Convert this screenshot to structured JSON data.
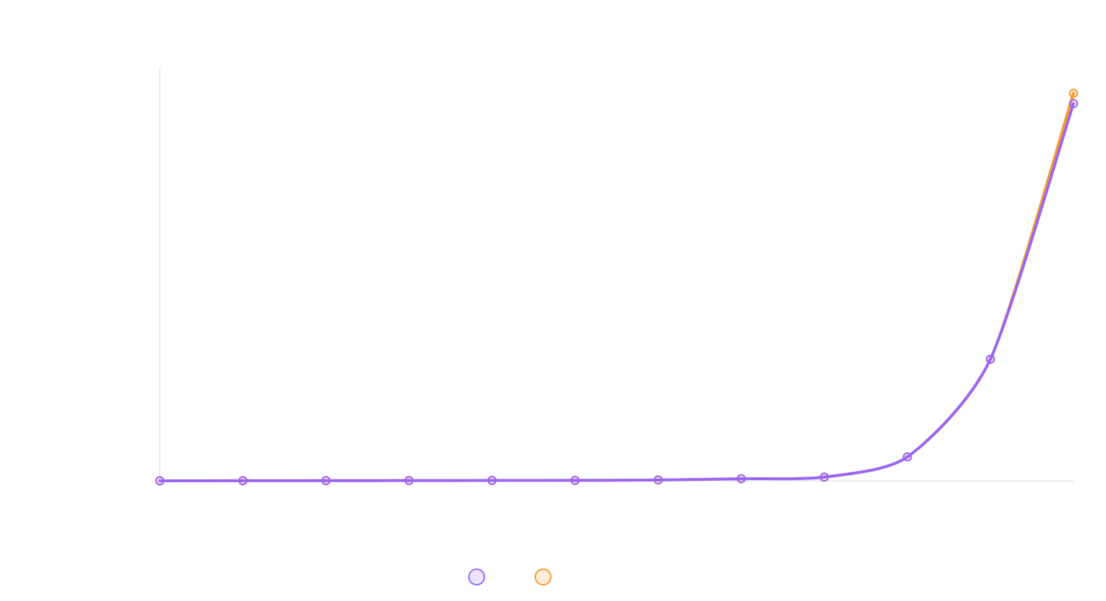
{
  "chart_data": {
    "type": "line",
    "title": "",
    "xlabel": "",
    "ylabel": "",
    "categories": [
      "",
      "",
      "",
      "",
      "",
      "",
      "",
      "",
      "",
      "",
      "",
      ""
    ],
    "ylim": [
      0,
      100
    ],
    "grid": false,
    "legend": "bottom-center",
    "series": [
      {
        "color": "#9a66f5",
        "values": [
          0,
          0.02,
          0.04,
          0.06,
          0.08,
          0.1,
          0.2,
          0.5,
          0.9,
          5.8,
          29.5,
          91.5
        ]
      },
      {
        "color": "#f79a2c",
        "values": [
          0,
          0.02,
          0.04,
          0.06,
          0.08,
          0.1,
          0.2,
          0.5,
          0.9,
          5.8,
          29.5,
          94
        ]
      }
    ]
  }
}
